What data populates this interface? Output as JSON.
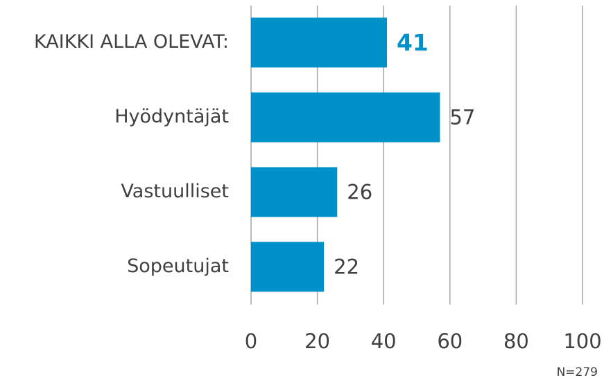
{
  "chart_data": {
    "type": "bar",
    "orientation": "horizontal",
    "categories": [
      "KAIKKI ALLA OLEVAT:",
      "Hyödyntäjät",
      "Vastuulliset",
      "Sopeutujat"
    ],
    "values": [
      41,
      57,
      26,
      22
    ],
    "color": "#0091c9",
    "highlight": 0,
    "xlim": [
      0,
      100
    ],
    "xticks": [
      0,
      20,
      40,
      60,
      80,
      100
    ],
    "grid": true,
    "note": "N=279"
  }
}
